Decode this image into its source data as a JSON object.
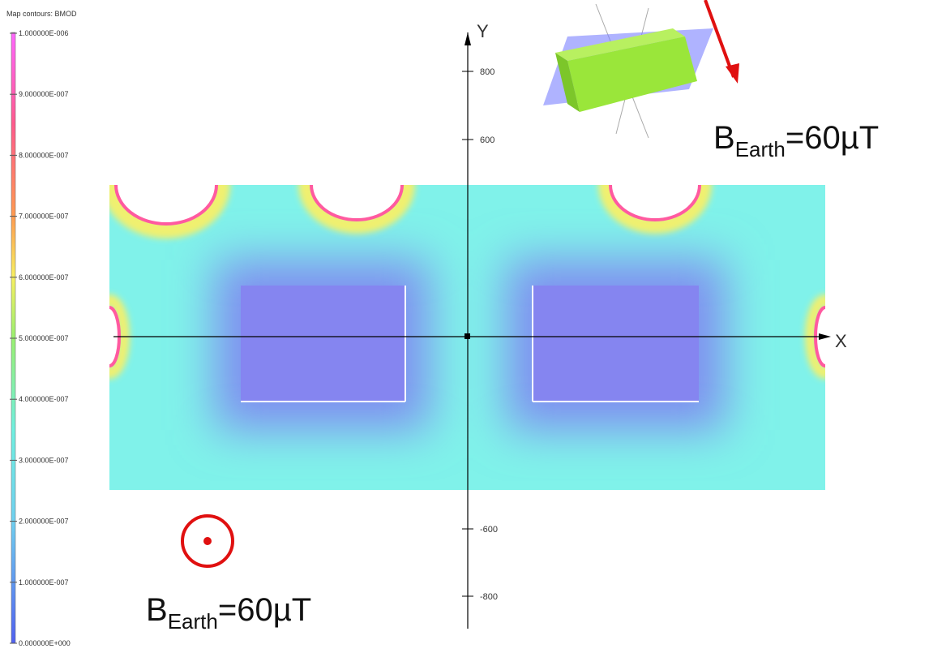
{
  "legend": {
    "title": "Map contours: BMOD",
    "ticks": [
      "1.000000E-006",
      "9.000000E-007",
      "8.000000E-007",
      "7.000000E-007",
      "6.000000E-007",
      "5.000000E-007",
      "4.000000E-007",
      "3.000000E-007",
      "2.000000E-007",
      "1.000000E-007",
      "0.000000E+000"
    ]
  },
  "axes": {
    "y_label": "Y",
    "x_label": "X",
    "y_ticks": [
      {
        "label": "800"
      },
      {
        "label": "600"
      },
      {
        "label": "-600"
      },
      {
        "label": "-800"
      }
    ]
  },
  "annotations": [
    {
      "base": "B",
      "sub": "Earth",
      "rest": "=60µT"
    },
    {
      "base": "B",
      "sub": "Earth",
      "rest": "=60µT"
    }
  ]
}
